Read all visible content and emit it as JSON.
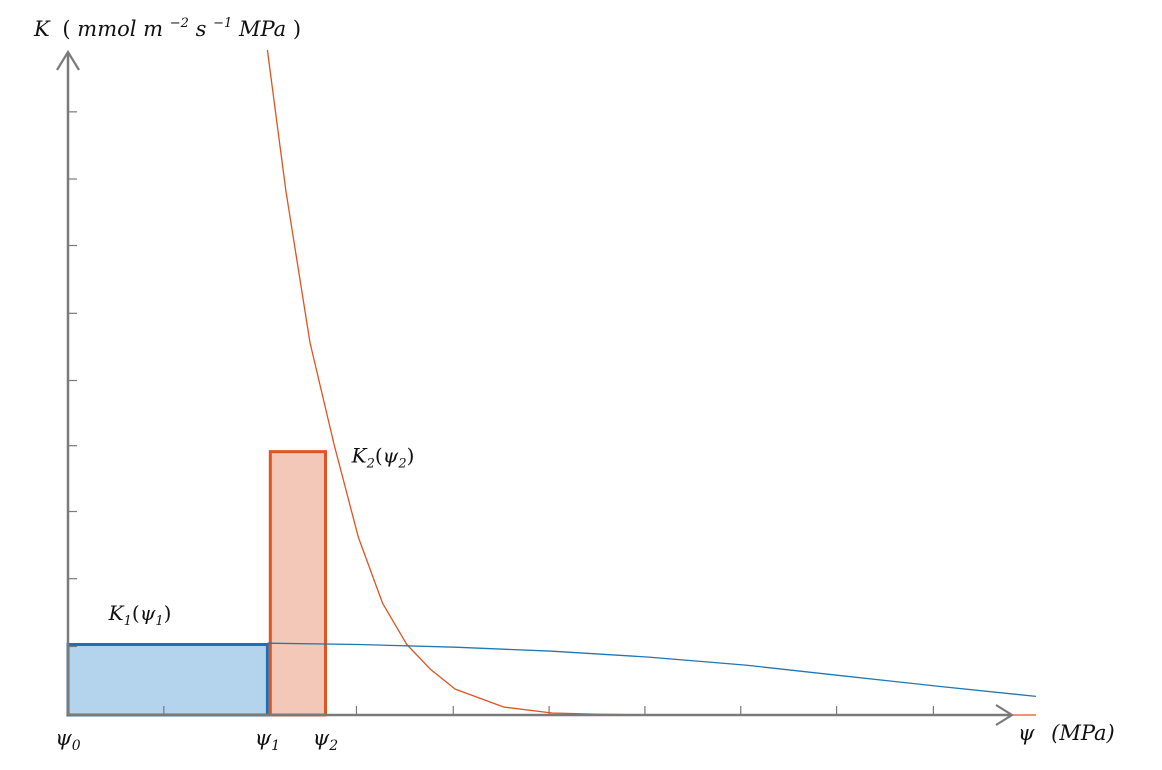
{
  "colors": {
    "axis": "#7a7a7a",
    "blue_curve": "#1f77b4",
    "blue_fill": "#b3d4ec",
    "blue_edge": "#1f6fb4",
    "orange_curve": "#e0531f",
    "orange_fill": "#f4c8b8",
    "orange_edge": "#de5520"
  },
  "chart_data": {
    "type": "line",
    "ylabel": {
      "sym": "K",
      "open": "(",
      "unit_a": "mmol m",
      "exp_a": "−2",
      "unit_b": "s",
      "exp_b": "−1",
      "unit_c": "MPa",
      "close": ")"
    },
    "xlabel": {
      "sym": "ψ",
      "unit": "(MPa)"
    },
    "x_ticks": [
      {
        "sym": "ψ",
        "sub": "0"
      },
      {
        "sym": "ψ",
        "sub": "1"
      },
      {
        "sym": "ψ",
        "sub": "2"
      }
    ],
    "annotations": [
      {
        "sym": "K",
        "sub": "1",
        "arg_sym": "ψ",
        "arg_sub": "1"
      },
      {
        "sym": "K",
        "sub": "2",
        "arg_sym": "ψ",
        "arg_sub": "2"
      }
    ],
    "xlim": [
      0,
      10
    ],
    "ylim": [
      0,
      10
    ],
    "grid": false,
    "series": [
      {
        "color_key": "orange_curve",
        "x": [
          2.06,
          2.25,
          2.5,
          2.75,
          3.0,
          3.25,
          3.5,
          3.75,
          4.0,
          4.5,
          5.0,
          5.5,
          6.0,
          7.0,
          10.0
        ],
        "y": [
          10.0,
          7.89,
          5.6,
          4.06,
          2.67,
          1.68,
          1.06,
          0.68,
          0.39,
          0.12,
          0.03,
          0.01,
          0.0,
          0.0,
          0.0
        ]
      },
      {
        "color_key": "blue_curve",
        "x": [
          2.06,
          3.0,
          4.0,
          5.0,
          6.0,
          7.0,
          8.0,
          9.0,
          10.0
        ],
        "y": [
          1.08,
          1.06,
          1.02,
          0.96,
          0.87,
          0.75,
          0.59,
          0.43,
          0.28
        ]
      }
    ],
    "bars": [
      {
        "name": "K1",
        "x0": 0.0,
        "x1": 2.06,
        "height": 1.06,
        "fill_key": "blue_fill",
        "edge_key": "blue_edge"
      },
      {
        "name": "K2",
        "x0": 2.09,
        "x1": 2.66,
        "height": 3.96,
        "fill_key": "orange_fill",
        "edge_key": "orange_edge"
      }
    ],
    "tick_marks_x": [
      0.99,
      2.98,
      3.98,
      4.97,
      5.96,
      6.95,
      7.94,
      8.94
    ],
    "tick_marks_y": [
      1.03,
      2.05,
      3.06,
      4.05,
      5.03,
      6.04,
      7.06,
      8.06,
      9.07
    ],
    "x_tick_positions": [
      0.0,
      2.06,
      2.66
    ],
    "annotation_positions": [
      {
        "x": 0.42,
        "y": 1.43
      },
      {
        "x": 2.93,
        "y": 3.8
      }
    ]
  }
}
